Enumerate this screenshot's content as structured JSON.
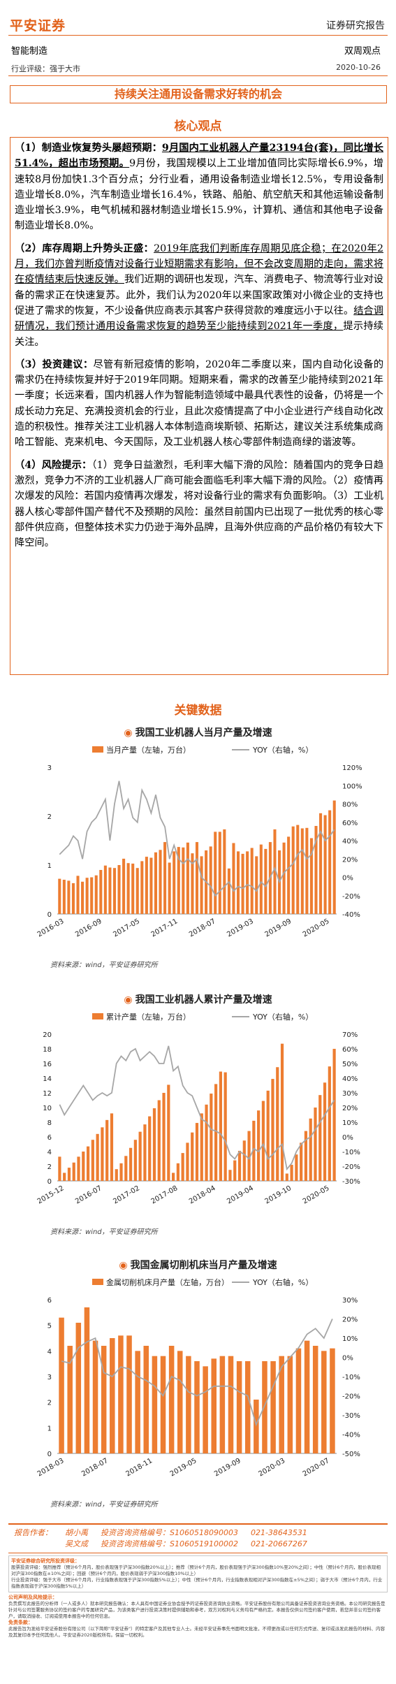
{
  "header": {
    "logo": "平安证券",
    "report_type": "证券研究报告",
    "sector": "智能制造",
    "view_type": "双周观点",
    "rating": "行业评级：强于大市",
    "date": "2020-10-26"
  },
  "title": "持续关注通用设备需求好转的机会",
  "core": {
    "heading": "核心观点",
    "p1_head": "（1）制造业恢复势头屡超预期：",
    "p1_u": "9月国内工业机器人产量23194台(套)，同比增长51.4%，超出市场预期。",
    "p1_rest": "9月份，我国规模以上工业增加值同比实际增长6.9%，增速较8月份加快1.3个百分点；分行业看，通用设备制造业增长12.5%，专用设备制造业增长8.0%，汽车制造业增长16.4%，铁路、船舶、航空航天和其他运输设备制造业增长3.9%，电气机械和器材制造业增长15.9%，计算机、通信和其他电子设备制造业增长8.0%。",
    "p2_head": "（2）库存周期上升势头正盛：",
    "p2_u": "2019年底我们判断库存周期见底企稳；在2020年2月，我们亦曾判断疫情对设备行业短期需求有影响，但不会改变周期的走向，需求将在疫情结束后快速反弹。",
    "p2_mid": "我们近期的调研也发现，汽车、消费电子、物流等行业对设备的需求正在快速复苏。此外，我们认为2020年以来国家政策对小微企业的支持也促进了需求的恢复，不少设备供应商表示其客户获得贷款的难度远小于以往。",
    "p2_u2": "结合调研情况，我们预计通用设备需求恢复的趋势至少能持续到2021年一季度，",
    "p2_end": "提示持续关注。",
    "p3_head": "（3）投资建议：",
    "p3_rest": "尽管有新冠疫情的影响，2020年二季度以来，国内自动化设备的需求仍在持续恢复并好于2019年同期。短期来看，需求的改善至少能持续到2021年一季度；长远来看，国内机器人作为智能制造领域中最具代表性的设备，仍将是一个成长动力充足、充满投资机会的行业，且此次疫情提高了中小企业进行产线自动化改造的积极性。推荐关注工业机器人本体制造商埃斯顿、拓斯达，建议关注系统集成商哈工智能、克来机电、今天国际，及工业机器人核心零部件制造商绿的谐波等。",
    "p4_head": "（4）风险提示：",
    "p4_rest": "（1）竞争日益激烈，毛利率大幅下滑的风险：随着国内的竞争日趋激烈，竞争力不济的工业机器人厂商可能会面临毛利率大幅下滑的风险。（2）疫情再次爆发的风险：若国内疫情再次爆发，将对设备行业的需求有负面影响。（3）工业机器人核心零部件国产替代不及预期的风险：虽然目前国内已出现了一批优秀的核心零部件供应商，但整体技术实力仍逊于海外品牌，且海外供应商的产品价格仍有较大下降空间。"
  },
  "key_data_heading": "关键数据",
  "colors": {
    "accent": "#e2621b",
    "bar": "#ed7d31",
    "line": "#a6a6a6"
  },
  "chart_data": [
    {
      "type": "bar",
      "title": "我国工业机器人当月产量及增速",
      "legend": [
        "当月产量（左轴，万台）",
        "YOY（右轴，%）"
      ],
      "x_ticks": [
        "2016-03",
        "2016-09",
        "2017-05",
        "2017-11",
        "2018-07",
        "2019-03",
        "2019-09",
        "2020-05"
      ],
      "ylim_left": [
        0,
        3
      ],
      "left_ticks": [
        "0",
        "1",
        "2",
        "3"
      ],
      "ylim_right": [
        -40,
        120
      ],
      "right_ticks": [
        "-40%",
        "-20%",
        "0%",
        "20%",
        "40%",
        "60%",
        "80%",
        "100%",
        "120%"
      ],
      "series": [
        {
          "name": "当月产量（左轴，万台）",
          "kind": "bar",
          "values": [
            0.72,
            0.7,
            0.68,
            0.63,
            0.78,
            0.66,
            0.74,
            0.75,
            0.79,
            0.9,
            0.99,
            0.95,
            0.94,
            1.0,
            1.13,
            1.04,
            1.03,
            0.94,
            1.08,
            1.17,
            1.15,
            1.26,
            1.31,
            1.47,
            1.05,
            1.28,
            1.37,
            1.36,
            1.46,
            1.24,
            1.47,
            1.18,
            1.3,
            1.38,
            1.68,
            1.68,
            1.73,
            0.93,
            1.45,
            1.28,
            1.23,
            1.28,
            1.35,
            1.18,
            1.42,
            1.33,
            1.47,
            1.73,
            1.3,
            1.46,
            1.58,
            1.79,
            1.82,
            1.75,
            1.76,
            1.55,
            1.8,
            2.06,
            2.02,
            2.12,
            2.32
          ]
        },
        {
          "name": "YOY（右轴，%）",
          "kind": "line",
          "values": [
            25,
            30,
            35,
            45,
            40,
            20,
            50,
            60,
            65,
            75,
            85,
            40,
            80,
            105,
            75,
            85,
            65,
            60,
            95,
            85,
            70,
            90,
            65,
            55,
            20,
            35,
            20,
            15,
            20,
            15,
            20,
            0,
            -5,
            -10,
            -20,
            -15,
            -10,
            -5,
            -15,
            -10,
            -12,
            -8,
            -10,
            -15,
            -5,
            -10,
            0,
            10,
            -5,
            5,
            10,
            15,
            25,
            30,
            20,
            25,
            40,
            50,
            40,
            45,
            52
          ]
        }
      ],
      "source": "资料来源：wind，平安证券研究所"
    },
    {
      "type": "bar",
      "title": "我国工业机器人累计产量及增速",
      "legend": [
        "累计产量（左轴，万台）",
        "YOY（右轴，%）"
      ],
      "x_ticks": [
        "2015-12",
        "2016-07",
        "2017-02",
        "2017-08",
        "2018-04",
        "2019-04",
        "2019-10",
        "2020-05"
      ],
      "ylim_left": [
        0,
        20
      ],
      "left_ticks": [
        "0",
        "2",
        "4",
        "6",
        "8",
        "10",
        "12",
        "14",
        "16",
        "18",
        "20"
      ],
      "ylim_right": [
        -30,
        70
      ],
      "right_ticks": [
        "-30%",
        "-20%",
        "-10%",
        "0%",
        "10%",
        "20%",
        "30%",
        "40%",
        "50%",
        "60%",
        "70%"
      ],
      "series": [
        {
          "name": "累计产量（左轴，万台）",
          "kind": "bar",
          "values": [
            3.3,
            1.1,
            1.8,
            2.5,
            3.3,
            4.0,
            4.7,
            5.6,
            6.4,
            7.3,
            8.3,
            9.2,
            1.6,
            2.4,
            3.4,
            4.5,
            5.6,
            6.7,
            7.7,
            8.8,
            9.9,
            11.0,
            12.0,
            13.1,
            1.1,
            2.4,
            3.8,
            5.2,
            6.6,
            7.9,
            9.2,
            10.4,
            11.9,
            13.2,
            14.9,
            14.8,
            1.5,
            2.8,
            4.1,
            5.5,
            6.8,
            8.2,
            9.6,
            10.9,
            12.3,
            13.9,
            15.5,
            18.7,
            1.0,
            2.2,
            3.6,
            5.2,
            6.8,
            8.5,
            10.0,
            11.7,
            13.4,
            15.6,
            18.0
          ]
        },
        {
          "name": "YOY（右轴，%）",
          "kind": "line",
          "values": [
            22,
            15,
            20,
            25,
            30,
            35,
            30,
            25,
            28,
            30,
            28,
            30,
            50,
            55,
            52,
            58,
            60,
            52,
            55,
            58,
            55,
            50,
            50,
            62,
            45,
            48,
            35,
            30,
            28,
            20,
            12,
            10,
            5,
            4,
            2,
            -3,
            -12,
            -15,
            -10,
            -12,
            -15,
            -8,
            -10,
            -5,
            -15,
            -12,
            -8,
            -5,
            -22,
            -18,
            -10,
            -5,
            -2,
            0,
            5,
            10,
            15,
            20,
            25
          ]
        }
      ],
      "source": "资料来源：wind，平安证券研究所"
    },
    {
      "type": "bar",
      "title": "我国金属切削机床当月产量及增速",
      "legend": [
        "金属切削机床月产量（左轴，万台）",
        "YOY（右轴，%）"
      ],
      "x_ticks": [
        "2018-03",
        "2018-07",
        "2018-11",
        "2019-05",
        "2019-09",
        "2020-03",
        "2020-07"
      ],
      "ylim_left": [
        0,
        6
      ],
      "left_ticks": [
        "0",
        "1",
        "2",
        "3",
        "4",
        "5",
        "6"
      ],
      "ylim_right": [
        -50,
        30
      ],
      "right_ticks": [
        "-50%",
        "-40%",
        "-30%",
        "-20%",
        "-10%",
        "0%",
        "10%",
        "20%",
        "30%"
      ],
      "series": [
        {
          "name": "金属切削机床月产量（左轴，万台）",
          "kind": "bar",
          "values": [
            5.3,
            4.2,
            5.1,
            5.7,
            4.4,
            4.2,
            4.5,
            4.6,
            4.6,
            4.0,
            4.2,
            3.8,
            3.8,
            4.2,
            4.0,
            3.8,
            3.6,
            3.4,
            3.7,
            3.8,
            3.8,
            3.6,
            3.6,
            2.1,
            3.6,
            3.6,
            3.8,
            3.8,
            4.1,
            4.4,
            4.2,
            4.0,
            4.1
          ]
        },
        {
          "name": "YOY（右轴，%）",
          "kind": "line",
          "values": [
            -2,
            -3,
            5,
            8,
            10,
            -8,
            -10,
            -5,
            -6,
            -10,
            -12,
            -15,
            -20,
            -10,
            -12,
            -18,
            -20,
            -18,
            -15,
            -15,
            -15,
            -18,
            -20,
            -35,
            -25,
            -15,
            -5,
            0,
            5,
            12,
            15,
            10,
            20
          ]
        }
      ],
      "source": "资料来源：wind，平安证券研究所"
    }
  ],
  "analyst": {
    "label": "报告作者：",
    "rows": [
      {
        "name": "胡小禹",
        "cert": "投资咨询资格编号：S1060518090003",
        "phone": "021-38643531"
      },
      {
        "name": "吴文成",
        "cert": "投资咨询资格编号：S1060519100002",
        "phone": "021-20667267"
      }
    ]
  },
  "disclaimer": {
    "h1": "平安证券综合研究所投资评级：",
    "l1": "股票投资评级：强烈推荐（预计6个月内，股价表现强于沪深300指数20%以上）；推荐（预计6个月内，股价表现强于沪深300指数10%至20%之间）；中性（预计6个月内，股价表现相对沪深300指数在±10%之间）；回避（预计6个月内，股价表现弱于沪深300指数10%以上）",
    "l2": "行业投资评级：强于大市（预计6个月内，行业指数表现强于沪深300指数5%以上）；中性（预计6个月内，行业指数表现相对沪深300指数在±5%之间）；弱于大市（预计6个月内，行业指数表现弱于沪深300指数5%以上）",
    "h2": "公司声明及风险提示：",
    "l3": "负责撰写此报告的分析师（一人或多人）就本研究报告确认：本人具有中国证券业协会授予的证券投资咨询执业资格。平安证券股份有限公司具备证券投资咨询业务资格。本公司研究报告是针对与公司签署服务协议的签约客户的专属研究产品，为该类客户进行投资决策时提供辅助和参考，双方对权利与义务均有严格约定。本报告仅供公司签约客户使用，若您并非公司签约客户，请取消接收、订阅或使用本报告中的任何信息。",
    "h3": "免责条款：",
    "l4": "此报告旨为发给平安证券股份有限公司（以下简称\"平安证券\"）的特定客户及其他专业人士。未经平安证券事先书面明文批准，不得更改或以任何方式传送、复印或派发此报告的材料、内容及其复印本予任何其他人。平安证券2020版权所有。保留一切权利。"
  }
}
